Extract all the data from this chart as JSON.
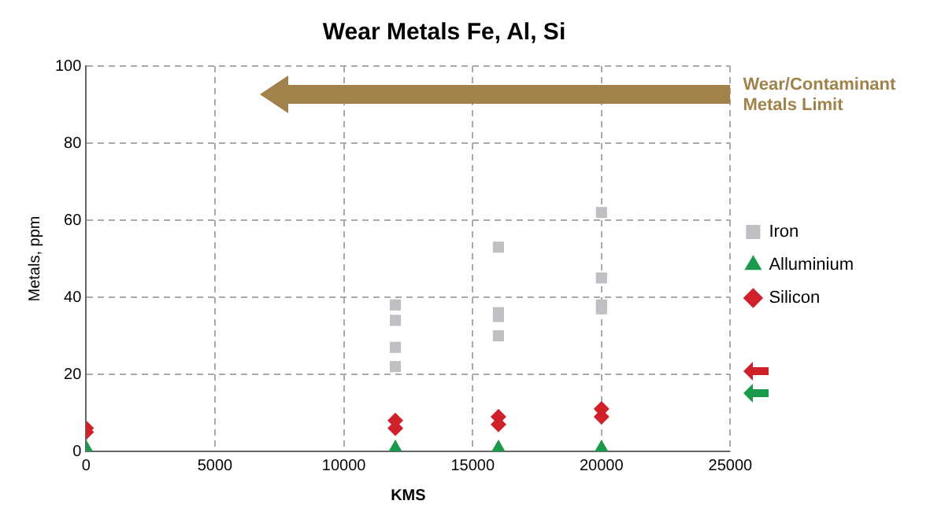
{
  "chart_data": {
    "type": "scatter",
    "title": "Wear Metals Fe, Al, Si",
    "xlabel": "KMS",
    "ylabel": "Metals, ppm",
    "xlim": [
      0,
      25000
    ],
    "xticks": [
      0,
      5000,
      10000,
      15000,
      20000,
      25000
    ],
    "ylim": [
      0,
      100
    ],
    "yticks": [
      0,
      20,
      40,
      60,
      80,
      100
    ],
    "grid": true,
    "legend": "right",
    "series": [
      {
        "name": "Iron",
        "color": "#c0c0c4",
        "marker": "square",
        "x": [
          12000,
          12000,
          12000,
          12000,
          16000,
          16000,
          16000,
          16000,
          20000,
          20000,
          20000,
          20000
        ],
        "values": [
          38,
          34,
          27,
          22,
          53,
          36,
          35,
          30,
          62,
          45,
          38,
          37
        ]
      },
      {
        "name": "Alluminium",
        "color": "#1a9a4a",
        "marker": "triangle",
        "x": [
          0,
          12000,
          16000,
          20000
        ],
        "values": [
          1,
          1,
          1,
          1
        ]
      },
      {
        "name": "Silicon",
        "color": "#d0202a",
        "marker": "diamond",
        "x": [
          0,
          0,
          12000,
          12000,
          16000,
          16000,
          20000,
          20000
        ],
        "values": [
          6,
          5,
          8,
          6,
          9,
          7,
          11,
          9
        ]
      }
    ],
    "annotations": [
      "Wear/Contaminant Metals Limit"
    ]
  }
}
